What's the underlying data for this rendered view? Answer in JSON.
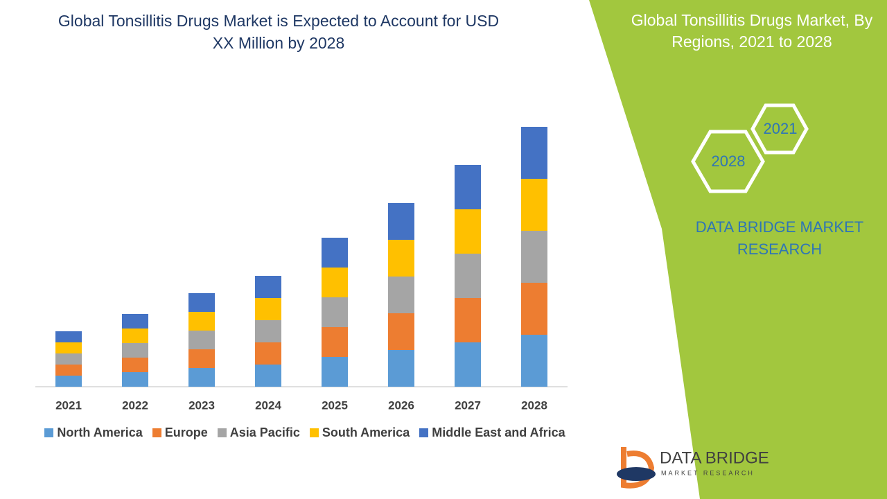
{
  "chart_data": {
    "type": "stacked_bar",
    "title": "Global Tonsillitis Drugs Market is Expected to Account for USD XX Million by 2028",
    "categories": [
      "2021",
      "2022",
      "2023",
      "2024",
      "2025",
      "2026",
      "2027",
      "2028"
    ],
    "series": [
      {
        "name": "North America",
        "color": "#5b9bd5",
        "values": [
          16,
          21,
          27,
          32,
          43,
          53,
          64,
          75
        ]
      },
      {
        "name": "Europe",
        "color": "#ed7d31",
        "values": [
          16,
          21,
          27,
          32,
          43,
          53,
          64,
          75
        ]
      },
      {
        "name": "Asia Pacific",
        "color": "#a5a5a5",
        "values": [
          16,
          21,
          27,
          32,
          43,
          53,
          64,
          75
        ]
      },
      {
        "name": "South America",
        "color": "#ffc000",
        "values": [
          16,
          21,
          27,
          32,
          43,
          53,
          64,
          75
        ]
      },
      {
        "name": "Middle East and Africa",
        "color": "#4472c4",
        "values": [
          16,
          21,
          27,
          32,
          43,
          53,
          64,
          75
        ]
      }
    ],
    "ylim": [
      0,
      400
    ]
  },
  "panel": {
    "title": "Global Tonsillitis Drugs Market, By Regions, 2021 to 2028",
    "hexagons": [
      "2021",
      "2028"
    ],
    "brand": "DATA BRIDGE MARKET RESEARCH"
  },
  "logo": {
    "name": "DATA BRIDGE",
    "tagline": "MARKET RESEARCH"
  }
}
